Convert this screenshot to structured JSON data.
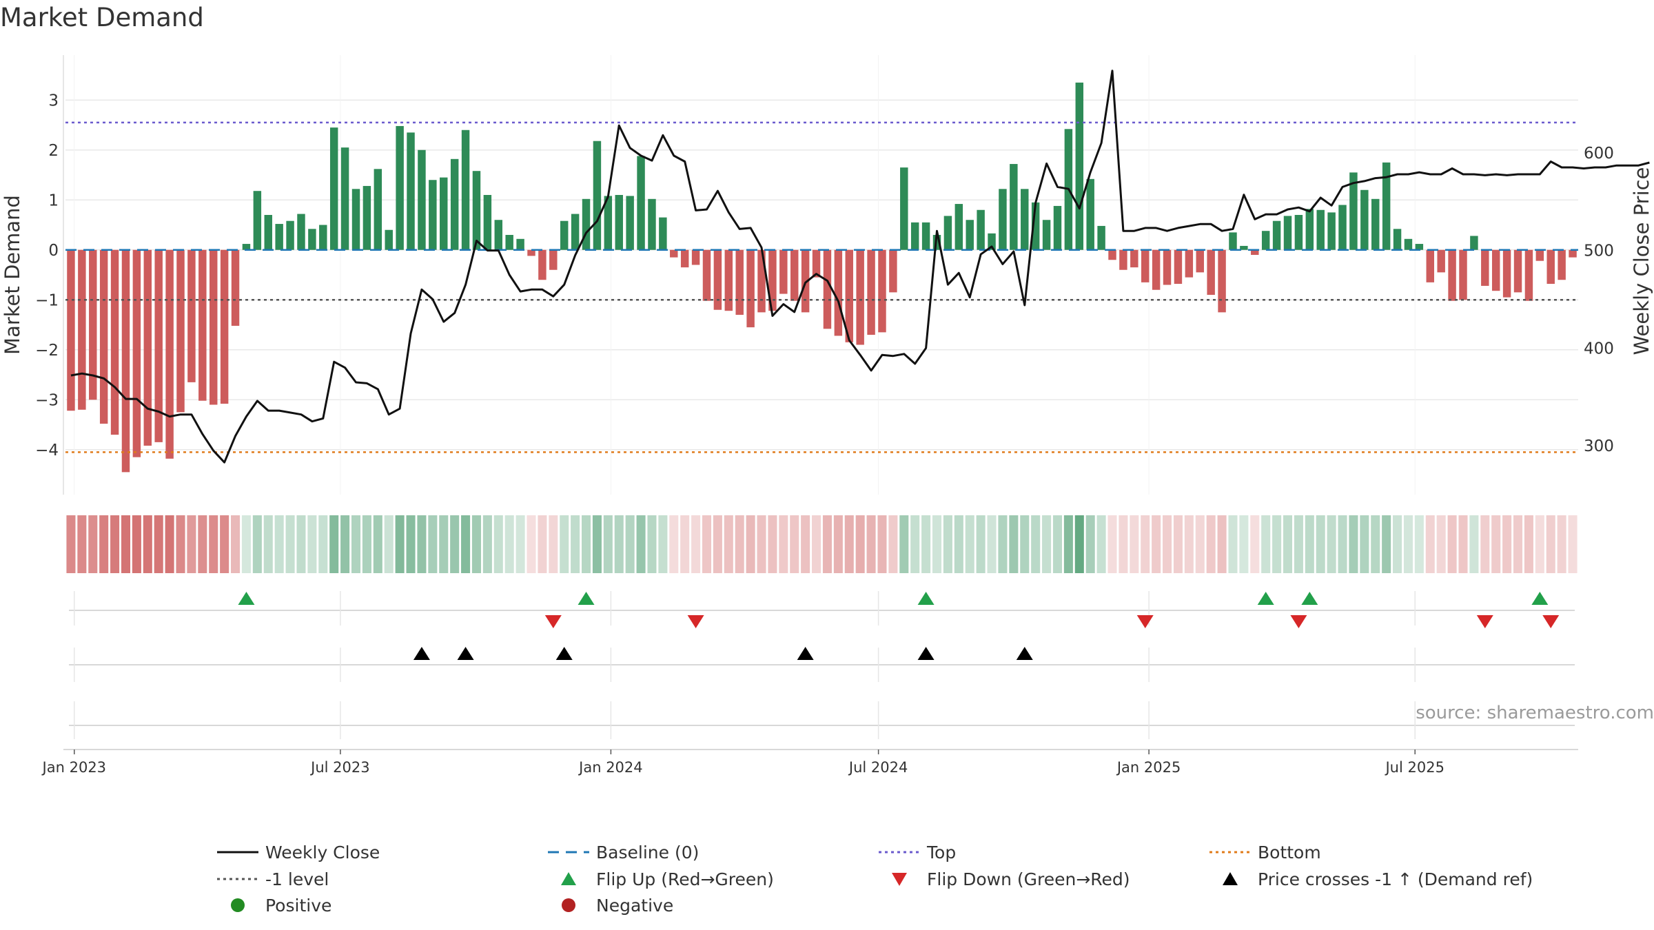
{
  "chart_data": {
    "type": "bar",
    "title": "Market Demand",
    "source": "source: sharemaestro.com",
    "ylabel": "Market Demand",
    "y2label": "Weekly Close Price",
    "ylim": [
      -4.9,
      3.9
    ],
    "y2lim": [
      250,
      700
    ],
    "yticks": [
      3,
      2,
      1,
      0,
      -1,
      -2,
      -3,
      -4
    ],
    "ytick_labels": [
      "3",
      "2",
      "1",
      "0",
      "−1",
      "−2",
      "−3",
      "−4"
    ],
    "y2ticks": [
      600,
      500,
      400,
      300
    ],
    "y2tick_labels": [
      "600",
      "500",
      "400",
      "300"
    ],
    "x_start": "2022-12-26",
    "x_end": "2025-10-20",
    "xticks": [
      {
        "date": "2023-01-01",
        "label": "Jan 2023"
      },
      {
        "date": "2023-07-01",
        "label": "Jul 2023"
      },
      {
        "date": "2024-01-01",
        "label": "Jan 2024"
      },
      {
        "date": "2024-07-01",
        "label": "Jul 2024"
      },
      {
        "date": "2025-01-01",
        "label": "Jan 2025"
      },
      {
        "date": "2025-07-01",
        "label": "Jul 2025"
      }
    ],
    "reference_lines": {
      "top": 2.55,
      "bottom": -4.05,
      "level": -1,
      "baseline": 0
    },
    "colors": {
      "positive": "#2e8b57",
      "negative": "#cd5c5c",
      "price": "#111111",
      "top": "#6a5acd",
      "bottom": "#e07b1a",
      "level": "#555555",
      "baseline": "#1f77b4",
      "flip_up": "#22a04a",
      "flip_down": "#d62728",
      "cross": "#000000"
    },
    "demand": [
      -3.22,
      -3.2,
      -3.0,
      -3.48,
      -3.7,
      -4.45,
      -4.15,
      -3.92,
      -3.85,
      -4.18,
      -3.25,
      -2.65,
      -3.02,
      -3.1,
      -3.08,
      -1.52,
      0.12,
      1.18,
      0.7,
      0.52,
      0.58,
      0.72,
      0.42,
      0.5,
      2.45,
      2.05,
      1.22,
      1.28,
      1.62,
      0.4,
      2.48,
      2.35,
      2.0,
      1.4,
      1.45,
      1.82,
      2.4,
      1.58,
      1.1,
      0.6,
      0.3,
      0.22,
      -0.12,
      -0.6,
      -0.4,
      0.58,
      0.72,
      1.02,
      2.18,
      1.08,
      1.1,
      1.08,
      1.88,
      1.02,
      0.65,
      -0.15,
      -0.35,
      -0.3,
      -1.02,
      -1.2,
      -1.22,
      -1.3,
      -1.55,
      -1.25,
      -1.22,
      -0.88,
      -1.02,
      -1.25,
      -0.55,
      -1.58,
      -1.72,
      -1.85,
      -1.9,
      -1.7,
      -1.65,
      -0.85,
      1.65,
      0.55,
      0.55,
      0.3,
      0.68,
      0.92,
      0.6,
      0.8,
      0.33,
      1.22,
      1.72,
      1.22,
      0.95,
      0.6,
      0.88,
      2.42,
      3.35,
      1.42,
      0.48,
      -0.2,
      -0.4,
      -0.35,
      -0.65,
      -0.8,
      -0.7,
      -0.68,
      -0.55,
      -0.45,
      -0.9,
      -1.25,
      0.35,
      0.08,
      -0.1,
      0.38,
      0.58,
      0.68,
      0.7,
      0.82,
      0.8,
      0.75,
      0.9,
      1.55,
      1.2,
      1.02,
      1.75,
      0.42,
      0.22,
      0.12,
      -0.65,
      -0.45,
      -1.02,
      -1.0,
      0.28,
      -0.72,
      -0.82,
      -0.95,
      -0.85,
      -1.02,
      -0.22,
      -0.68,
      -0.6,
      -0.15
    ],
    "price": [
      [
        0,
        372
      ],
      [
        1,
        374
      ],
      [
        2,
        372
      ],
      [
        3,
        369
      ],
      [
        4,
        360
      ],
      [
        5,
        348
      ],
      [
        6,
        348
      ],
      [
        7,
        338
      ],
      [
        8,
        335
      ],
      [
        9,
        330
      ],
      [
        10,
        332
      ],
      [
        11,
        332
      ],
      [
        12,
        312
      ],
      [
        13,
        295
      ],
      [
        14,
        283
      ],
      [
        15,
        310
      ],
      [
        16,
        330
      ],
      [
        17,
        346
      ],
      [
        18,
        336
      ],
      [
        19,
        336
      ],
      [
        20,
        334
      ],
      [
        21,
        332
      ],
      [
        22,
        325
      ],
      [
        23,
        328
      ],
      [
        24,
        386
      ],
      [
        25,
        380
      ],
      [
        26,
        365
      ],
      [
        27,
        364
      ],
      [
        28,
        358
      ],
      [
        29,
        332
      ],
      [
        30,
        338
      ],
      [
        31,
        415
      ],
      [
        32,
        460
      ],
      [
        33,
        450
      ],
      [
        34,
        427
      ],
      [
        35,
        436
      ],
      [
        36,
        465
      ],
      [
        37,
        510
      ],
      [
        38,
        500
      ],
      [
        39,
        500
      ],
      [
        40,
        475
      ],
      [
        41,
        458
      ],
      [
        42,
        460
      ],
      [
        43,
        460
      ],
      [
        44,
        453
      ],
      [
        45,
        465
      ],
      [
        46,
        495
      ],
      [
        47,
        518
      ],
      [
        48,
        530
      ],
      [
        49,
        555
      ],
      [
        50,
        628
      ],
      [
        51,
        605
      ],
      [
        52,
        597
      ],
      [
        53,
        592
      ],
      [
        54,
        618
      ],
      [
        55,
        597
      ],
      [
        56,
        591
      ],
      [
        57,
        541
      ],
      [
        58,
        542
      ],
      [
        59,
        561
      ],
      [
        60,
        539
      ],
      [
        61,
        522
      ],
      [
        62,
        523
      ],
      [
        63,
        503
      ],
      [
        64,
        433
      ],
      [
        65,
        445
      ],
      [
        66,
        437
      ],
      [
        67,
        467
      ],
      [
        68,
        476
      ],
      [
        69,
        469
      ],
      [
        70,
        448
      ],
      [
        71,
        408
      ],
      [
        72,
        393
      ],
      [
        73,
        377
      ],
      [
        74,
        393
      ],
      [
        75,
        392
      ],
      [
        76,
        394
      ],
      [
        77,
        384
      ],
      [
        78,
        400
      ],
      [
        79,
        520
      ],
      [
        80,
        465
      ],
      [
        81,
        477
      ],
      [
        82,
        452
      ],
      [
        83,
        496
      ],
      [
        84,
        504
      ],
      [
        85,
        486
      ],
      [
        86,
        499
      ],
      [
        87,
        444
      ],
      [
        88,
        549
      ],
      [
        89,
        589
      ],
      [
        90,
        565
      ],
      [
        91,
        563
      ],
      [
        92,
        543
      ],
      [
        93,
        580
      ],
      [
        94,
        610
      ],
      [
        95,
        684
      ],
      [
        96,
        520
      ],
      [
        97,
        520
      ],
      [
        98,
        523
      ],
      [
        99,
        523
      ],
      [
        100,
        520
      ],
      [
        101,
        523
      ],
      [
        102,
        525
      ],
      [
        103,
        527
      ],
      [
        104,
        527
      ],
      [
        105,
        520
      ],
      [
        106,
        522
      ],
      [
        107,
        557
      ],
      [
        108,
        532
      ],
      [
        109,
        537
      ],
      [
        110,
        537
      ],
      [
        111,
        542
      ],
      [
        112,
        544
      ],
      [
        113,
        540
      ],
      [
        114,
        554
      ],
      [
        115,
        546
      ],
      [
        116,
        565
      ],
      [
        117,
        569
      ],
      [
        118,
        571
      ],
      [
        119,
        574
      ],
      [
        120,
        575
      ],
      [
        121,
        578
      ],
      [
        122,
        578
      ],
      [
        123,
        580
      ],
      [
        124,
        578
      ],
      [
        125,
        578
      ],
      [
        126,
        584
      ],
      [
        127,
        578
      ],
      [
        128,
        578
      ],
      [
        129,
        577
      ],
      [
        130,
        578
      ],
      [
        131,
        577
      ],
      [
        132,
        578
      ],
      [
        133,
        578
      ],
      [
        134,
        578
      ],
      [
        135,
        591
      ],
      [
        136,
        585
      ],
      [
        137,
        585
      ],
      [
        138,
        584
      ],
      [
        139,
        585
      ],
      [
        140,
        585
      ],
      [
        141,
        587
      ],
      [
        142,
        587
      ],
      [
        143,
        587
      ],
      [
        144,
        590
      ]
    ],
    "heat_strip": [
      -3.2,
      -3.2,
      -3.0,
      -3.5,
      -3.7,
      -4.4,
      -4.2,
      -3.9,
      -3.8,
      -4.2,
      -3.2,
      -2.6,
      -3.0,
      -3.1,
      -3.1,
      -1.5,
      0.1,
      1.2,
      0.7,
      0.5,
      0.6,
      0.7,
      0.4,
      0.5,
      2.4,
      2.0,
      1.2,
      1.3,
      1.6,
      0.4,
      2.5,
      2.3,
      2.0,
      1.4,
      1.5,
      1.8,
      2.4,
      1.6,
      1.1,
      0.6,
      0.3,
      0.2,
      -0.1,
      -0.6,
      -0.4,
      0.6,
      0.7,
      1.0,
      2.2,
      1.1,
      1.1,
      1.1,
      1.9,
      1.0,
      0.6,
      -0.2,
      -0.4,
      -0.3,
      -1.0,
      -1.2,
      -1.2,
      -1.3,
      -1.5,
      -1.2,
      -1.2,
      -0.9,
      -1.0,
      -1.2,
      -0.6,
      -1.6,
      -1.7,
      -1.8,
      -1.9,
      -1.7,
      -1.6,
      -0.8,
      1.6,
      0.6,
      0.6,
      0.3,
      0.7,
      0.9,
      0.6,
      0.8,
      0.3,
      1.2,
      1.7,
      1.2,
      0.9,
      0.6,
      0.9,
      2.4,
      3.3,
      1.4,
      0.5,
      -0.2,
      -0.4,
      -0.3,
      -0.6,
      -0.8,
      -0.7,
      -0.7,
      -0.5,
      -0.4,
      -0.9,
      -1.2,
      0.3,
      0.1,
      -0.1,
      0.4,
      0.6,
      0.7,
      0.7,
      0.8,
      0.8,
      0.7,
      0.9,
      1.5,
      1.2,
      1.0,
      1.7,
      0.4,
      0.2,
      0.1,
      -0.6,
      -0.4,
      -1.0,
      -1.0,
      0.3,
      -0.7,
      -0.8,
      -0.9,
      -0.8,
      -1.0,
      -0.2,
      -0.7,
      -0.6,
      -0.2
    ],
    "flip_up_weeks": [
      16,
      47,
      78,
      109,
      113,
      134
    ],
    "flip_down_weeks": [
      44,
      57,
      98,
      112,
      129,
      135
    ],
    "cross_weeks": [
      32,
      36,
      45,
      67,
      78,
      87
    ],
    "legend": [
      {
        "label": "Weekly Close",
        "style": "line-solid"
      },
      {
        "label": "Baseline (0)",
        "style": "line-dash-blue"
      },
      {
        "label": "Top",
        "style": "line-dot-purple"
      },
      {
        "label": "Bottom",
        "style": "line-dot-orange"
      },
      {
        "label": "-1 level",
        "style": "line-dot-gray"
      },
      {
        "label": "Flip Up (Red→Green)",
        "style": "triangle-up-green"
      },
      {
        "label": "Flip Down (Green→Red)",
        "style": "triangle-down-red"
      },
      {
        "label": "Price crosses -1 ↑ (Demand ref)",
        "style": "triangle-up-black"
      },
      {
        "label": "Positive",
        "style": "dot-green"
      },
      {
        "label": "Negative",
        "style": "dot-red"
      }
    ]
  }
}
